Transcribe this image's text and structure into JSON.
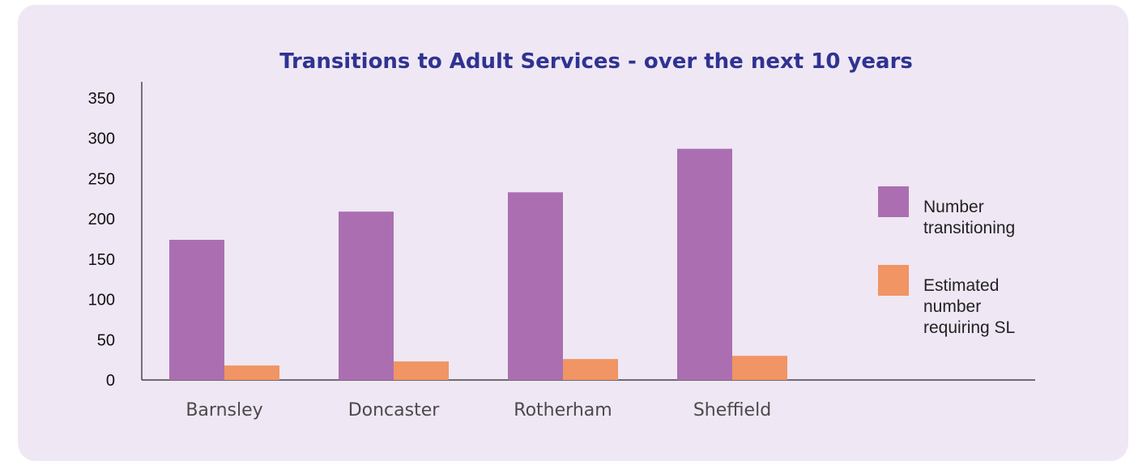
{
  "chart_data": {
    "type": "bar",
    "title": "Transitions to Adult Services - over the next 10 years",
    "xlabel": "",
    "ylabel": "",
    "categories": [
      "Barnsley",
      "Doncaster",
      "Rotherham",
      "Sheffield"
    ],
    "series": [
      {
        "name": "Number transitioning",
        "legend_lines": [
          "Number",
          "transitioning"
        ],
        "color": "#ab6fb1",
        "values": [
          174,
          209,
          233,
          287
        ]
      },
      {
        "name": "Estimated number requiring SL",
        "legend_lines": [
          "Estimated",
          "number",
          "requiring SL"
        ],
        "color": "#f09563",
        "values": [
          18,
          23,
          26,
          30
        ]
      }
    ],
    "ylim": [
      0,
      350
    ],
    "yticks": [
      0,
      50,
      100,
      150,
      200,
      250,
      300,
      350
    ],
    "grid": false,
    "legend_position": "right",
    "colors": {
      "card_background": "#efe7f4",
      "title": "#2f3391",
      "axis": "#222222"
    }
  }
}
